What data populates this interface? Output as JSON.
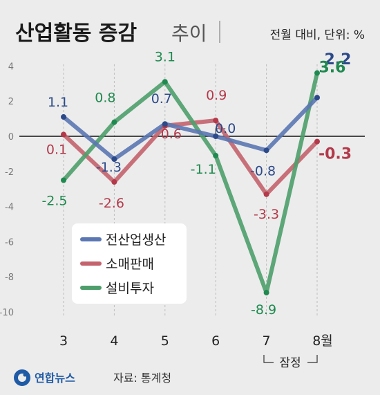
{
  "title_main": "산업활동 증감",
  "title_light": "추이",
  "unit": "전월 대비, 단위: %",
  "note": "잠정",
  "brand": "연합뉴스",
  "source": "자료: 통계청",
  "chart_data": {
    "type": "line",
    "categories": [
      "3",
      "4",
      "5",
      "6",
      "7",
      "8월"
    ],
    "ylim": [
      -10,
      4
    ],
    "yticks": [
      4,
      2,
      0,
      -2,
      -4,
      -6,
      -8,
      -10
    ],
    "grid": "vertical-dashed",
    "legend_position": "bottom-left",
    "series": [
      {
        "name": "전산업생산",
        "color": "#5b77b3",
        "label_color": "#2c4a8a",
        "values": [
          1.1,
          -1.3,
          0.7,
          0.0,
          -0.8,
          2.2
        ],
        "labels": [
          "1.1",
          "-1.3",
          "0.7",
          "0.0",
          "-0.8",
          "2.2"
        ]
      },
      {
        "name": "소매판매",
        "color": "#c4636d",
        "label_color": "#b3394a",
        "values": [
          0.1,
          -2.6,
          0.6,
          0.9,
          -3.3,
          -0.3
        ],
        "labels": [
          "0.1",
          "-2.6",
          "0.6",
          "0.9",
          "-3.3",
          "-0.3"
        ]
      },
      {
        "name": "설비투자",
        "color": "#4e9e6b",
        "label_color": "#1f8a50",
        "values": [
          -2.5,
          0.8,
          3.1,
          -1.1,
          -8.9,
          3.6
        ],
        "labels": [
          "-2.5",
          "0.8",
          "3.1",
          "-1.1",
          "-8.9",
          "3.6"
        ]
      }
    ]
  }
}
